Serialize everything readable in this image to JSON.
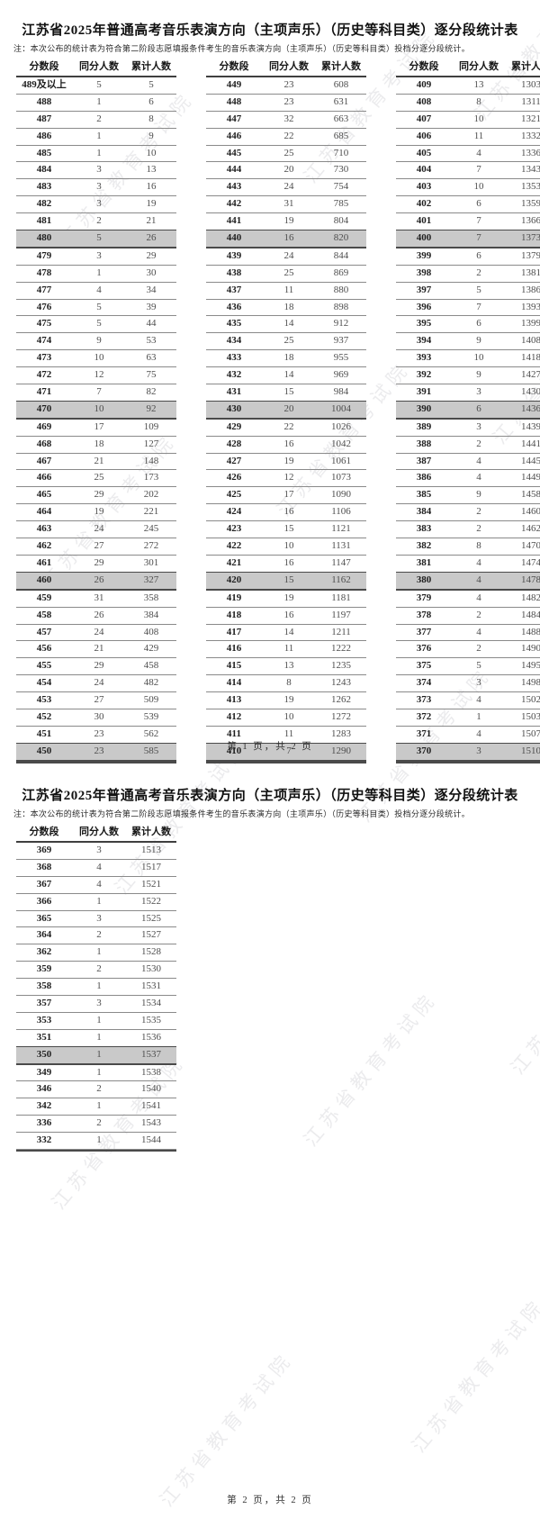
{
  "watermark": "江苏省教育考试院",
  "table_headers": [
    "分数段",
    "同分人数",
    "累计人数"
  ],
  "pages": [
    {
      "title": "江苏省2025年普通高考音乐表演方向（主项声乐）（历史等科目类）逐分段统计表",
      "note": "注：本次公布的统计表为符合第二阶段志愿填报条件考生的音乐表演方向（主项声乐）（历史等科目类）投档分逐分段统计。",
      "footer": "第 1 页，共 2 页"
    },
    {
      "title": "江苏省2025年普通高考音乐表演方向（主项声乐）（历史等科目类）逐分段统计表",
      "note": "注：本次公布的统计表为符合第二阶段志愿填报条件考生的音乐表演方向（主项声乐）（历史等科目类）投档分逐分段统计。",
      "footer": "第 2 页，共 2 页"
    }
  ],
  "tables": {
    "p1c1": [
      [
        "489及以上",
        5,
        5
      ],
      [
        "488",
        1,
        6
      ],
      [
        "487",
        2,
        8
      ],
      [
        "486",
        1,
        9
      ],
      [
        "485",
        1,
        10
      ],
      [
        "484",
        3,
        13
      ],
      [
        "483",
        3,
        16
      ],
      [
        "482",
        3,
        19
      ],
      [
        "481",
        2,
        21
      ],
      [
        "480",
        5,
        26
      ],
      [
        "479",
        3,
        29
      ],
      [
        "478",
        1,
        30
      ],
      [
        "477",
        4,
        34
      ],
      [
        "476",
        5,
        39
      ],
      [
        "475",
        5,
        44
      ],
      [
        "474",
        9,
        53
      ],
      [
        "473",
        10,
        63
      ],
      [
        "472",
        12,
        75
      ],
      [
        "471",
        7,
        82
      ],
      [
        "470",
        10,
        92
      ],
      [
        "469",
        17,
        109
      ],
      [
        "468",
        18,
        127
      ],
      [
        "467",
        21,
        148
      ],
      [
        "466",
        25,
        173
      ],
      [
        "465",
        29,
        202
      ],
      [
        "464",
        19,
        221
      ],
      [
        "463",
        24,
        245
      ],
      [
        "462",
        27,
        272
      ],
      [
        "461",
        29,
        301
      ],
      [
        "460",
        26,
        327
      ],
      [
        "459",
        31,
        358
      ],
      [
        "458",
        26,
        384
      ],
      [
        "457",
        24,
        408
      ],
      [
        "456",
        21,
        429
      ],
      [
        "455",
        29,
        458
      ],
      [
        "454",
        24,
        482
      ],
      [
        "453",
        27,
        509
      ],
      [
        "452",
        30,
        539
      ],
      [
        "451",
        23,
        562
      ],
      [
        "450",
        23,
        585
      ]
    ],
    "p1c2": [
      [
        "449",
        23,
        608
      ],
      [
        "448",
        23,
        631
      ],
      [
        "447",
        32,
        663
      ],
      [
        "446",
        22,
        685
      ],
      [
        "445",
        25,
        710
      ],
      [
        "444",
        20,
        730
      ],
      [
        "443",
        24,
        754
      ],
      [
        "442",
        31,
        785
      ],
      [
        "441",
        19,
        804
      ],
      [
        "440",
        16,
        820
      ],
      [
        "439",
        24,
        844
      ],
      [
        "438",
        25,
        869
      ],
      [
        "437",
        11,
        880
      ],
      [
        "436",
        18,
        898
      ],
      [
        "435",
        14,
        912
      ],
      [
        "434",
        25,
        937
      ],
      [
        "433",
        18,
        955
      ],
      [
        "432",
        14,
        969
      ],
      [
        "431",
        15,
        984
      ],
      [
        "430",
        20,
        1004
      ],
      [
        "429",
        22,
        1026
      ],
      [
        "428",
        16,
        1042
      ],
      [
        "427",
        19,
        1061
      ],
      [
        "426",
        12,
        1073
      ],
      [
        "425",
        17,
        1090
      ],
      [
        "424",
        16,
        1106
      ],
      [
        "423",
        15,
        1121
      ],
      [
        "422",
        10,
        1131
      ],
      [
        "421",
        16,
        1147
      ],
      [
        "420",
        15,
        1162
      ],
      [
        "419",
        19,
        1181
      ],
      [
        "418",
        16,
        1197
      ],
      [
        "417",
        14,
        1211
      ],
      [
        "416",
        11,
        1222
      ],
      [
        "415",
        13,
        1235
      ],
      [
        "414",
        8,
        1243
      ],
      [
        "413",
        19,
        1262
      ],
      [
        "412",
        10,
        1272
      ],
      [
        "411",
        11,
        1283
      ],
      [
        "410",
        7,
        1290
      ]
    ],
    "p1c3": [
      [
        "409",
        13,
        1303
      ],
      [
        "408",
        8,
        1311
      ],
      [
        "407",
        10,
        1321
      ],
      [
        "406",
        11,
        1332
      ],
      [
        "405",
        4,
        1336
      ],
      [
        "404",
        7,
        1343
      ],
      [
        "403",
        10,
        1353
      ],
      [
        "402",
        6,
        1359
      ],
      [
        "401",
        7,
        1366
      ],
      [
        "400",
        7,
        1373
      ],
      [
        "399",
        6,
        1379
      ],
      [
        "398",
        2,
        1381
      ],
      [
        "397",
        5,
        1386
      ],
      [
        "396",
        7,
        1393
      ],
      [
        "395",
        6,
        1399
      ],
      [
        "394",
        9,
        1408
      ],
      [
        "393",
        10,
        1418
      ],
      [
        "392",
        9,
        1427
      ],
      [
        "391",
        3,
        1430
      ],
      [
        "390",
        6,
        1436
      ],
      [
        "389",
        3,
        1439
      ],
      [
        "388",
        2,
        1441
      ],
      [
        "387",
        4,
        1445
      ],
      [
        "386",
        4,
        1449
      ],
      [
        "385",
        9,
        1458
      ],
      [
        "384",
        2,
        1460
      ],
      [
        "383",
        2,
        1462
      ],
      [
        "382",
        8,
        1470
      ],
      [
        "381",
        4,
        1474
      ],
      [
        "380",
        4,
        1478
      ],
      [
        "379",
        4,
        1482
      ],
      [
        "378",
        2,
        1484
      ],
      [
        "377",
        4,
        1488
      ],
      [
        "376",
        2,
        1490
      ],
      [
        "375",
        5,
        1495
      ],
      [
        "374",
        3,
        1498
      ],
      [
        "373",
        4,
        1502
      ],
      [
        "372",
        1,
        1503
      ],
      [
        "371",
        4,
        1507
      ],
      [
        "370",
        3,
        1510
      ]
    ],
    "p2c1": [
      [
        "369",
        3,
        1513
      ],
      [
        "368",
        4,
        1517
      ],
      [
        "367",
        4,
        1521
      ],
      [
        "366",
        1,
        1522
      ],
      [
        "365",
        3,
        1525
      ],
      [
        "364",
        2,
        1527
      ],
      [
        "362",
        1,
        1528
      ],
      [
        "359",
        2,
        1530
      ],
      [
        "358",
        1,
        1531
      ],
      [
        "357",
        3,
        1534
      ],
      [
        "353",
        1,
        1535
      ],
      [
        "351",
        1,
        1536
      ],
      [
        "350",
        1,
        1537
      ],
      [
        "349",
        1,
        1538
      ],
      [
        "346",
        2,
        1540
      ],
      [
        "342",
        1,
        1541
      ],
      [
        "336",
        2,
        1543
      ],
      [
        "332",
        1,
        1544
      ]
    ]
  },
  "colors": {
    "highlight_row_bg": "#c9c9c9",
    "rule_line": "#4a4a4a",
    "watermark": "rgba(110,115,125,0.14)"
  }
}
